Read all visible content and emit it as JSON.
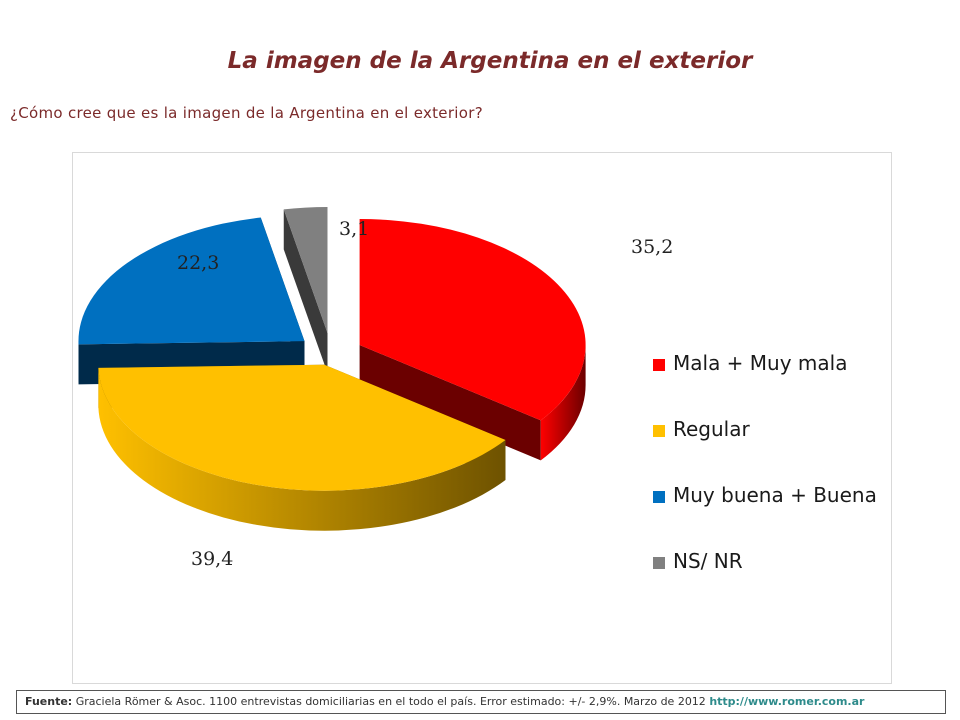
{
  "title": "La imagen de la Argentina en el exterior",
  "question": "¿Cómo cree que es la imagen de la Argentina en el exterior?",
  "chart_data": {
    "type": "pie",
    "style": "3d-exploded",
    "slices": [
      {
        "label": "Mala + Muy mala",
        "value": 35.2,
        "value_label": "35,2",
        "color": "#ff0000",
        "dark": "#6b0000"
      },
      {
        "label": "Regular",
        "value": 39.4,
        "value_label": "39,4",
        "color": "#ffc000",
        "dark": "#6e5200"
      },
      {
        "label": "Muy buena + Buena",
        "value": 22.3,
        "value_label": "22,3",
        "color": "#0070c0",
        "dark": "#002a4a"
      },
      {
        "label": "NS/ NR",
        "value": 3.1,
        "value_label": "3,1",
        "color": "#808080",
        "dark": "#3a3a3a"
      }
    ],
    "legend_position": "right"
  },
  "footer": {
    "label": "Fuente:",
    "text": " Graciela Römer & Asoc. 1100 entrevistas domiciliarias en el todo el país. Error estimado: +/- 2,9%. Marzo de 2012 ",
    "link": "http://www.romer.com.ar"
  }
}
